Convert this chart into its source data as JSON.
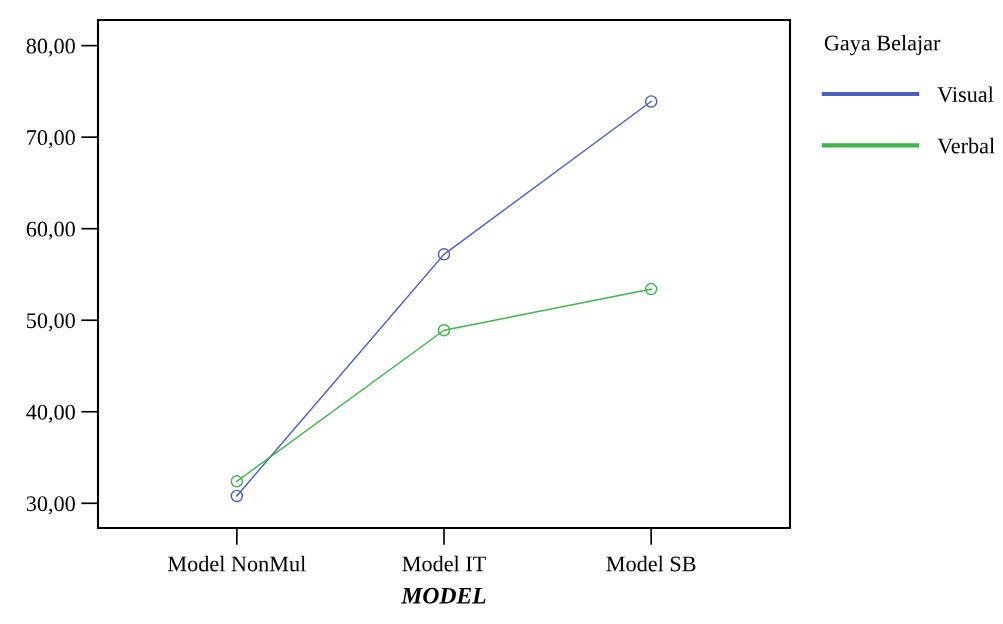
{
  "chart_data": {
    "type": "line",
    "xlabel": "MODEL",
    "legend_title": "Gaya Belajar",
    "categories": [
      "Model NonMul",
      "Model IT",
      "Model SB"
    ],
    "series": [
      {
        "name": "Visual",
        "color": "#4a5fc1",
        "values": [
          30.8,
          57.2,
          73.9
        ]
      },
      {
        "name": "Verbal",
        "color": "#3cb54a",
        "values": [
          32.4,
          48.9,
          53.4
        ]
      }
    ],
    "ylim": [
      27.3,
      82.8
    ],
    "yticks": [
      {
        "value": 30,
        "label": "30,00"
      },
      {
        "value": 40,
        "label": "40,00"
      },
      {
        "value": 50,
        "label": "50,00"
      },
      {
        "value": 60,
        "label": "60,00"
      },
      {
        "value": 70,
        "label": "70,00"
      },
      {
        "value": 80,
        "label": "80,00"
      }
    ],
    "grid": false,
    "legend": "right",
    "marker": "circle",
    "line_style": "solid"
  }
}
